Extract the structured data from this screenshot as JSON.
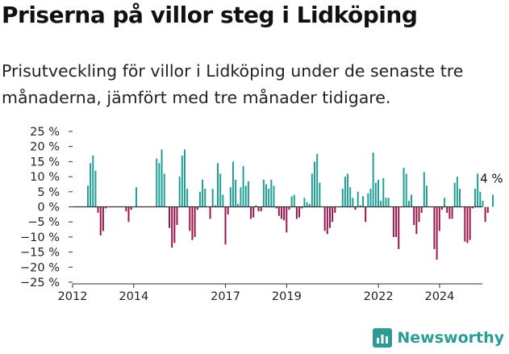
{
  "title": "Priserna på villor steg i Lidköping",
  "subtitle": "Prisutveckling för villor i Lidköping under de senaste tre månaderna, jämfört med tre månader tidigare.",
  "brand": {
    "name": "Newsworthy",
    "icon": "newsworthy-logo-icon"
  },
  "colors": {
    "positive": "#1b9e95",
    "negative": "#99124a",
    "axis": "#333333",
    "grid": "#cccccc"
  },
  "chart_data": {
    "type": "bar",
    "xlabel": "",
    "ylabel": "",
    "ylim": [
      -25,
      25
    ],
    "yticks": [
      25,
      20,
      15,
      10,
      5,
      0,
      -5,
      -10,
      -15,
      -20,
      -25
    ],
    "ytick_labels": [
      "25 %",
      "20 %",
      "15 %",
      "10 %",
      "5 %",
      "0 %",
      "−5 %",
      "−10 %",
      "−15 %",
      "−20 %",
      "−25 %"
    ],
    "xlim": [
      2012.0,
      2025.4
    ],
    "xticks": [
      2012,
      2014,
      2017,
      2019,
      2022,
      2024
    ],
    "xtick_labels": [
      "2012",
      "2014",
      "2017",
      "2019",
      "2022",
      "2024"
    ],
    "annotation": {
      "label": "4 %"
    },
    "x_start": 2012.5,
    "x_step": 0.0833,
    "values": [
      7,
      14.5,
      17,
      12,
      -2,
      -9.5,
      -8,
      -0.5,
      0,
      0,
      0,
      0,
      0,
      0,
      0,
      -1.5,
      -5,
      -1,
      0,
      6.5,
      0,
      0,
      0,
      0,
      0,
      0,
      0,
      16,
      14.5,
      19,
      11,
      0,
      -7,
      -13.5,
      -12,
      -6,
      10,
      17,
      19,
      6,
      -8,
      -11,
      -10,
      -1,
      5,
      9,
      6,
      0,
      -4,
      6,
      0.5,
      14.5,
      11,
      4,
      -12.5,
      -2.5,
      6.5,
      15,
      9,
      1,
      6.5,
      13.5,
      7,
      8.5,
      -4,
      -3.5,
      0.5,
      -1.5,
      -1.5,
      9,
      7.5,
      6,
      9,
      7,
      -0.5,
      -3,
      -4,
      -4.5,
      -8.5,
      -1,
      3.5,
      4,
      -4,
      -3.5,
      -0.5,
      3,
      1.5,
      1,
      11,
      15,
      17.5,
      8,
      0,
      -8,
      -9,
      -7,
      -5,
      -2,
      0,
      0,
      6,
      10,
      11,
      6.5,
      3,
      -1,
      5,
      0.5,
      3.5,
      -5,
      4.5,
      6,
      18,
      8,
      9,
      2,
      9.5,
      3,
      3,
      0,
      -10,
      -10,
      -14,
      0,
      13,
      11,
      2,
      4,
      -6,
      -9,
      -5,
      -2,
      11.5,
      7,
      0,
      0,
      -14,
      -17.5,
      -8,
      -1,
      3,
      -2,
      -4,
      -4,
      8,
      10,
      6,
      0,
      -11.5,
      -12,
      -11,
      -0.5,
      6,
      11,
      5,
      2,
      -5,
      -2,
      0,
      4
    ]
  }
}
